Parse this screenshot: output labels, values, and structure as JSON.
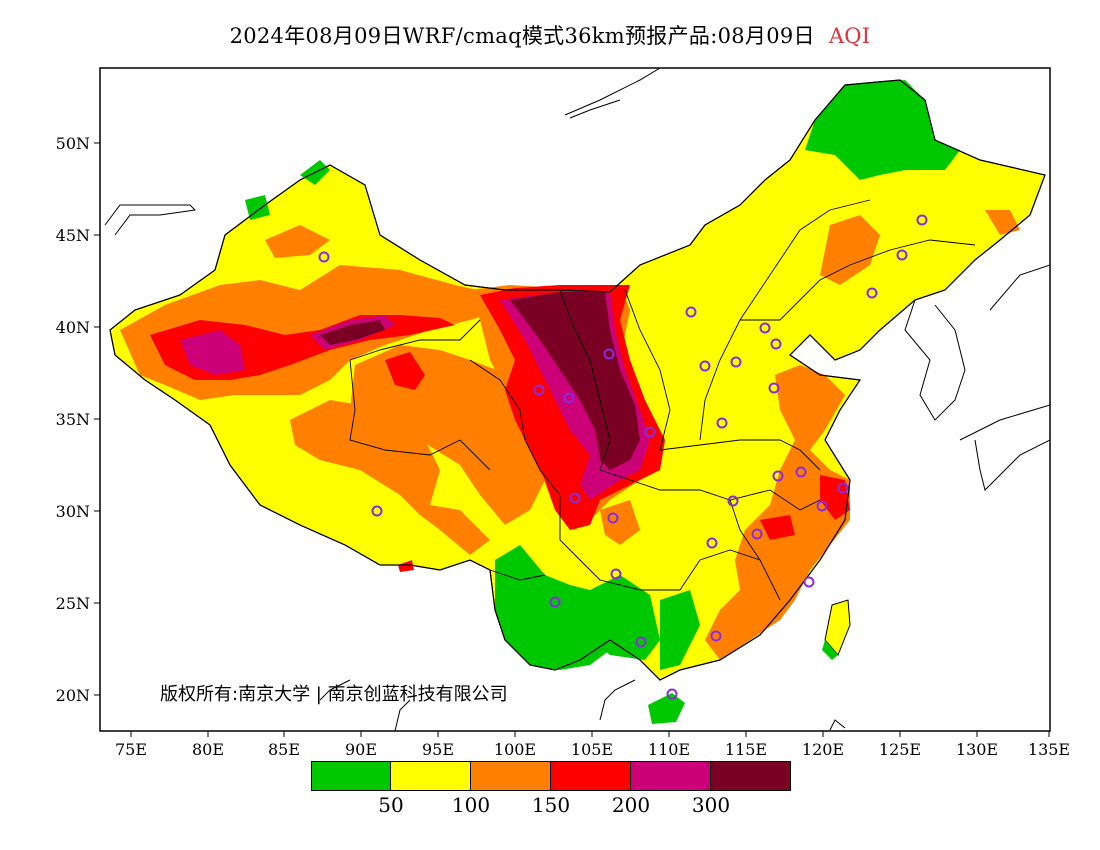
{
  "title": {
    "main": "2024年08月09日WRF/cmaq模式36km预报产品:08月09日",
    "variable": "AQI"
  },
  "axes": {
    "lat_ticks": [
      "50N",
      "45N",
      "40N",
      "35N",
      "30N",
      "25N",
      "20N"
    ],
    "lon_ticks": [
      "75E",
      "80E",
      "85E",
      "90E",
      "95E",
      "100E",
      "105E",
      "110E",
      "115E",
      "120E",
      "125E",
      "130E",
      "135E"
    ]
  },
  "copyright": "版权所有:南京大学 | 南京创蓝科技有限公司",
  "legend": {
    "colors": [
      "#00c800",
      "#ffff00",
      "#ff8000",
      "#ff0000",
      "#cc0077",
      "#7a0024"
    ],
    "labels": [
      "50",
      "100",
      "150",
      "200",
      "300"
    ]
  },
  "colors": {
    "good": "#00c800",
    "moderate": "#ffff00",
    "sensitive": "#ff8000",
    "unhealthy": "#ff0000",
    "very_unhealthy": "#cc0077",
    "hazardous": "#7a0024",
    "station_marker": "#8a2be2"
  }
}
